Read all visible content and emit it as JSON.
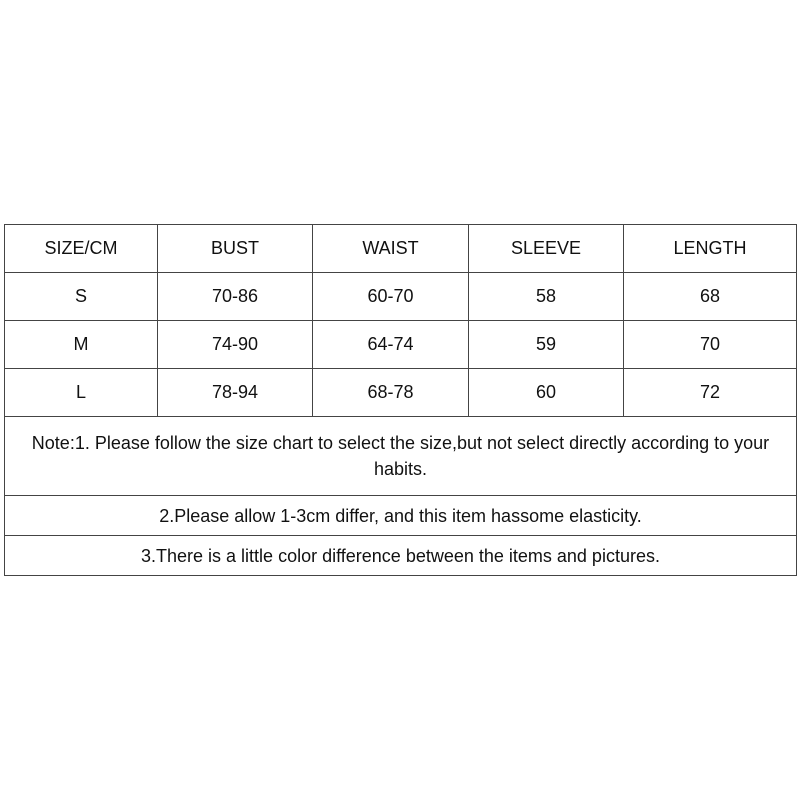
{
  "headers": [
    "SIZE/CM",
    "BUST",
    "WAIST",
    "SLEEVE",
    "LENGTH"
  ],
  "rows": [
    [
      "S",
      "70-86",
      "60-70",
      "58",
      "68"
    ],
    [
      "M",
      "74-90",
      "64-74",
      "59",
      "70"
    ],
    [
      "L",
      "78-94",
      "68-78",
      "60",
      "72"
    ]
  ],
  "notes": [
    "Note:1. Please follow the size chart to select the size,but not select directly according to your habits.",
    "2.Please allow 1-3cm differ, and this item hassome elasticity.",
    "3.There is a little color difference between the items and pictures."
  ]
}
